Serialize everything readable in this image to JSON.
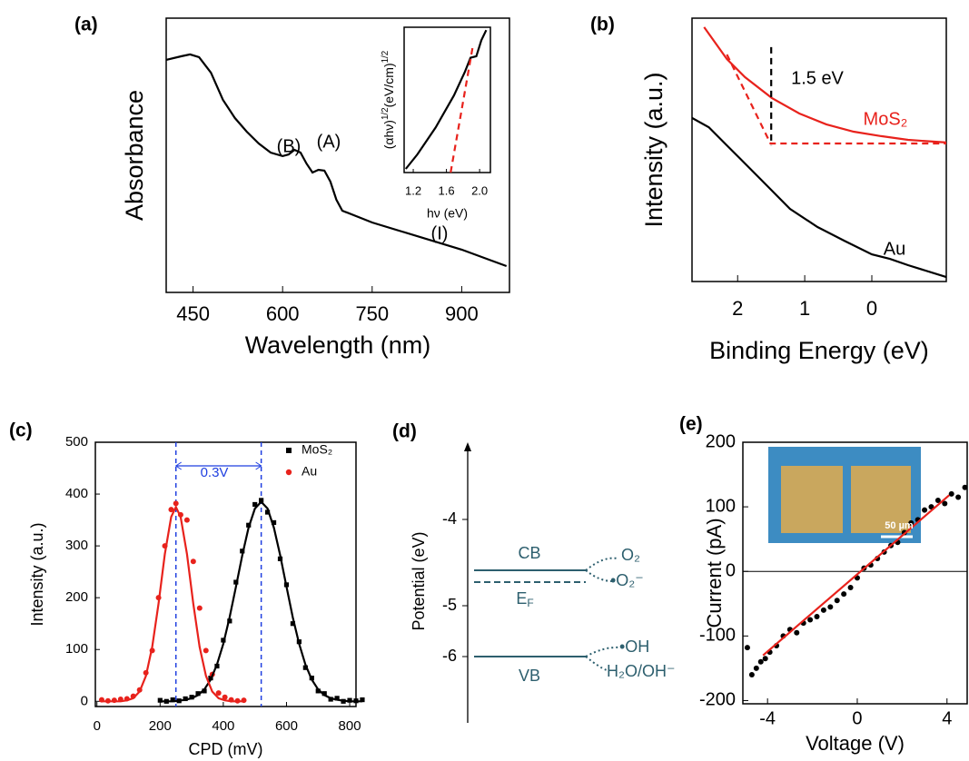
{
  "chart_data": [
    {
      "type": "line",
      "panel": "(a)",
      "xlabel": "Wavelength (nm)",
      "ylabel": "Absorbance",
      "xlim": [
        405,
        980
      ],
      "ylim": [
        0,
        1
      ],
      "xticks": [
        450,
        600,
        750,
        900
      ],
      "series": [
        {
          "color": "#000000",
          "style": "line",
          "x": [
            405,
            430,
            445,
            460,
            480,
            500,
            520,
            540,
            560,
            580,
            600,
            610,
            620,
            630,
            640,
            650,
            660,
            670,
            680,
            690,
            700,
            750,
            800,
            850,
            900,
            950,
            975
          ],
          "values": [
            0.848,
            0.861,
            0.868,
            0.858,
            0.801,
            0.702,
            0.636,
            0.586,
            0.543,
            0.51,
            0.497,
            0.503,
            0.52,
            0.51,
            0.47,
            0.437,
            0.447,
            0.444,
            0.404,
            0.338,
            0.298,
            0.255,
            0.222,
            0.189,
            0.156,
            0.116,
            0.096
          ]
        }
      ],
      "annotations": [
        {
          "text": "(B)",
          "color": "#000000"
        },
        {
          "text": "(A)",
          "color": "#000000"
        },
        {
          "text": "(I)",
          "color": "#000000"
        }
      ]
    },
    {
      "type": "line",
      "xlabel": "hν (eV)",
      "ylabel": [
        "(αhν)",
        "1/2",
        "(eV/cm)",
        "1/2"
      ],
      "xlim": [
        1.09,
        2.13
      ],
      "ylim": [
        0,
        1
      ],
      "xticks": [
        1.2,
        1.6,
        {
          "value": 2,
          "label": "2.0"
        }
      ],
      "series": [
        {
          "color": "#000000",
          "style": "line",
          "x": [
            1.11,
            1.25,
            1.47,
            1.69,
            1.82,
            1.89,
            1.96,
            2.02,
            2.08
          ],
          "values": [
            0.025,
            0.125,
            0.31,
            0.53,
            0.69,
            0.79,
            0.8,
            0.91,
            0.98
          ]
        },
        {
          "color": "#e8221c",
          "style": "dashed",
          "x": [
            1.65,
            1.92
          ],
          "values": [
            0,
            0.875
          ]
        }
      ]
    },
    {
      "type": "line",
      "panel": "(b)",
      "xlabel": "Binding Energy (eV)",
      "ylabel": "Intensity (a.u.)",
      "xlim": [
        2.68,
        -1.11
      ],
      "ylim": [
        0,
        1
      ],
      "xticks": [
        2,
        1,
        0
      ],
      "series": [
        {
          "color": "#e8221c",
          "style": "line",
          "x": [
            2.5,
            2.16,
            1.89,
            1.49,
            1.08,
            0.68,
            0.27,
            -0.14,
            -0.54,
            -1.11
          ],
          "values": [
            0.966,
            0.845,
            0.776,
            0.697,
            0.638,
            0.597,
            0.569,
            0.552,
            0.538,
            0.528
          ]
        },
        {
          "color": "#000000",
          "style": "line",
          "x": [
            2.68,
            2.43,
            2.16,
            1.96,
            1.62,
            1.22,
            0.81,
            0.41,
            0,
            -0.27,
            -0.54,
            -1.11
          ],
          "values": [
            0.621,
            0.586,
            0.517,
            0.466,
            0.379,
            0.276,
            0.207,
            0.155,
            0.103,
            0.086,
            0.062,
            0.017
          ]
        },
        {
          "color": "#e8221c",
          "style": "dashed",
          "x": [
            2.16,
            1.51,
            -1.11
          ],
          "values": [
            0.862,
            0.524,
            0.524
          ]
        },
        {
          "color": "#000000",
          "style": "dashed",
          "x": [
            1.5,
            1.5
          ],
          "values": [
            0.89,
            0.517
          ]
        }
      ],
      "annotations": [
        {
          "text": "1.5 eV",
          "color": "#000000"
        },
        {
          "text": "MoS₂",
          "color": "#e8221c"
        },
        {
          "text": "Au",
          "color": "#000000"
        }
      ]
    },
    {
      "type": "scatter",
      "panel": "(c)",
      "xlabel": "CPD (mV)",
      "ylabel": "Intensity (a.u.)",
      "xlim": [
        -5,
        820
      ],
      "ylim": [
        -10,
        500
      ],
      "xticks": [
        0,
        200,
        400,
        600,
        800
      ],
      "yticks": [
        0,
        100,
        200,
        300,
        400,
        500
      ],
      "vlines": [
        250,
        520
      ],
      "vline_color": "#1f3fe0",
      "series": [
        {
          "name": "MoS₂",
          "color": "#000000",
          "style": "square",
          "x": [
            200,
            220,
            240,
            260,
            280,
            300,
            320,
            340,
            360,
            380,
            400,
            420,
            440,
            460,
            480,
            500,
            520,
            540,
            560,
            580,
            600,
            620,
            640,
            660,
            680,
            700,
            720,
            740,
            760,
            780,
            800,
            820,
            840
          ],
          "values": [
            2,
            0,
            3,
            1,
            5,
            8,
            15,
            20,
            45,
            68,
            118,
            155,
            230,
            290,
            340,
            380,
            388,
            365,
            345,
            275,
            225,
            150,
            115,
            65,
            45,
            20,
            15,
            4,
            6,
            0,
            2,
            1,
            3
          ]
        },
        {
          "name": "Au",
          "color": "#e8221c",
          "style": "circle",
          "x": [
            15,
            35,
            55,
            75,
            95,
            115,
            135,
            155,
            175,
            195,
            215,
            235,
            250,
            265,
            285,
            305,
            325,
            345,
            365,
            385,
            405,
            425,
            445,
            465
          ],
          "values": [
            3,
            1,
            2,
            4,
            5,
            10,
            22,
            55,
            98,
            200,
            300,
            370,
            382,
            360,
            350,
            270,
            180,
            98,
            52,
            16,
            8,
            3,
            1,
            2
          ]
        },
        {
          "color": "#000000",
          "style": "line",
          "x": [
            200,
            220,
            240,
            260,
            280,
            300,
            320,
            340,
            360,
            380,
            400,
            420,
            440,
            460,
            480,
            500,
            520,
            540,
            560,
            580,
            600,
            620,
            640,
            660,
            680,
            700,
            720,
            740,
            760,
            780,
            800,
            820,
            840
          ],
          "values": [
            0,
            0,
            0,
            1,
            3,
            6,
            12,
            23,
            42,
            71,
            111,
            162,
            221,
            282,
            335,
            372,
            385,
            372,
            335,
            282,
            221,
            162,
            111,
            71,
            42,
            23,
            12,
            6,
            3,
            1,
            0,
            0,
            0
          ]
        },
        {
          "color": "#e8221c",
          "style": "line",
          "x": [
            15,
            35,
            55,
            75,
            95,
            115,
            135,
            155,
            175,
            195,
            215,
            235,
            250,
            265,
            285,
            305,
            325,
            345,
            365,
            385,
            405,
            425,
            445,
            465
          ],
          "values": [
            0,
            0,
            0,
            0,
            2,
            6,
            19,
            49,
            105,
            189,
            284,
            356,
            375,
            356,
            284,
            189,
            105,
            49,
            19,
            6,
            2,
            0,
            0,
            0
          ]
        }
      ],
      "annotations": [
        {
          "text": "0.3V",
          "color": "#1f3fe0"
        }
      ]
    },
    {
      "type": "scatter",
      "panel": "(e)",
      "xlabel": "Voltage (V)",
      "ylabel": "Current (pA)",
      "xlim": [
        -5.1,
        4.9
      ],
      "ylim": [
        -205,
        200
      ],
      "xticks": [
        -4,
        0,
        4
      ],
      "yticks": [
        -200,
        -100,
        0,
        100,
        200
      ],
      "zero_line": true,
      "series": [
        {
          "color": "#000000",
          "style": "circle",
          "x": [
            -4.9,
            -4.7,
            -4.5,
            -4.3,
            -4.1,
            -3.9,
            -3.6,
            -3.3,
            -3,
            -2.7,
            -2.4,
            -2.1,
            -1.8,
            -1.5,
            -1.2,
            -0.9,
            -0.6,
            -0.3,
            0,
            0.3,
            0.6,
            0.9,
            1.2,
            1.5,
            1.8,
            2.1,
            2.4,
            2.7,
            3,
            3.3,
            3.6,
            3.9,
            4.2,
            4.5,
            4.8
          ],
          "values": [
            -118,
            -160,
            -150,
            -140,
            -135,
            -125,
            -115,
            -100,
            -90,
            -95,
            -80,
            -75,
            -70,
            -60,
            -55,
            -45,
            -35,
            -25,
            -10,
            5,
            10,
            20,
            30,
            40,
            45,
            60,
            75,
            80,
            95,
            100,
            110,
            105,
            120,
            115,
            130
          ]
        },
        {
          "color": "#e8221c",
          "style": "line",
          "x": [
            -4.2,
            4.1
          ],
          "values": [
            -130,
            118
          ]
        }
      ],
      "annotations": [
        {
          "text": "50 µm",
          "color": "#ffffff"
        }
      ]
    }
  ],
  "diagram": {
    "panel": "(d)",
    "ylabel": "Potential (eV)",
    "ticks": [
      "-4",
      "-5",
      "-6"
    ],
    "cb": "CB",
    "ef": [
      "E",
      "F"
    ],
    "vb": "VB",
    "o2": "O₂",
    "o2_minus": "•O₂⁻",
    "oh": "•OH",
    "h2o": "H₂O/OH⁻"
  }
}
